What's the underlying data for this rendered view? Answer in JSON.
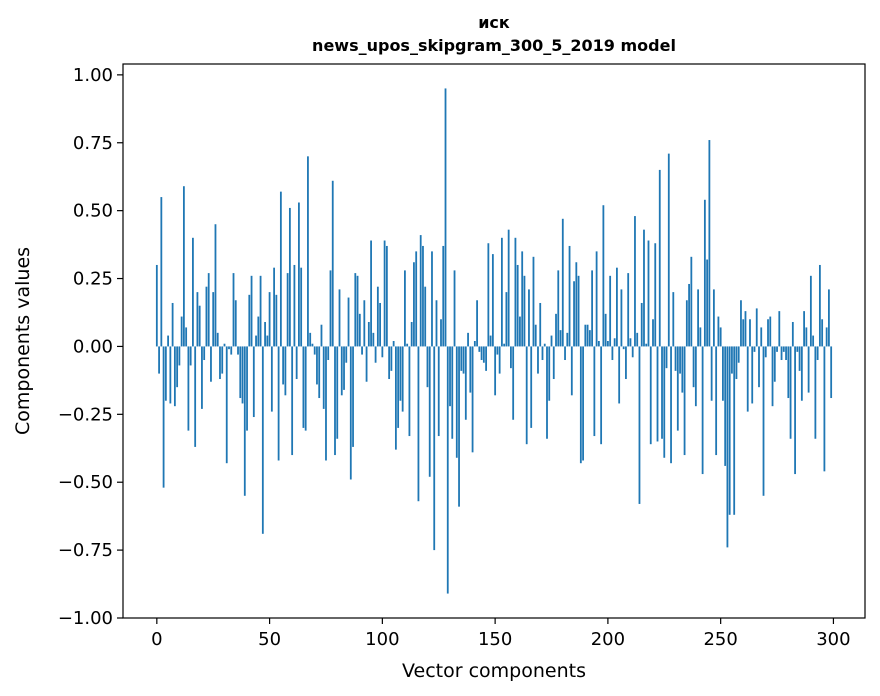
{
  "chart_data": {
    "type": "bar",
    "title_line1": "иск",
    "title_line2": "news_upos_skipgram_300_5_2019 model",
    "xlabel": "Vector components",
    "ylabel": "Components values",
    "xlim": [
      -15,
      314
    ],
    "ylim": [
      -1.0,
      1.04
    ],
    "xticks": [
      0,
      50,
      100,
      150,
      200,
      250,
      300
    ],
    "xtick_labels": [
      "0",
      "50",
      "100",
      "150",
      "200",
      "250",
      "300"
    ],
    "yticks": [
      -1.0,
      -0.75,
      -0.5,
      -0.25,
      0.0,
      0.25,
      0.5,
      0.75,
      1.0
    ],
    "ytick_labels": [
      "−1.00",
      "−0.75",
      "−0.50",
      "−0.25",
      "0.00",
      "0.25",
      "0.50",
      "0.75",
      "1.00"
    ],
    "grid": false,
    "bar_color": "#1f77b4",
    "x": "0..299 (component index)",
    "values": [
      0.3,
      -0.1,
      0.55,
      -0.52,
      -0.2,
      0.04,
      -0.21,
      0.16,
      -0.22,
      -0.15,
      -0.07,
      0.11,
      0.59,
      0.07,
      -0.31,
      -0.07,
      0.4,
      -0.37,
      0.2,
      0.15,
      -0.23,
      -0.05,
      0.22,
      0.27,
      -0.13,
      0.2,
      0.45,
      0.05,
      -0.12,
      -0.1,
      0.01,
      -0.43,
      -0.01,
      -0.03,
      0.27,
      0.17,
      -0.03,
      -0.19,
      -0.21,
      -0.55,
      -0.31,
      0.19,
      0.26,
      -0.26,
      0.04,
      0.11,
      0.26,
      -0.69,
      0.09,
      0.04,
      0.2,
      -0.24,
      0.29,
      0.19,
      -0.42,
      0.57,
      -0.14,
      -0.18,
      0.27,
      0.51,
      -0.4,
      0.3,
      -0.12,
      0.53,
      0.29,
      -0.3,
      -0.31,
      0.7,
      0.05,
      0.01,
      -0.03,
      -0.14,
      -0.19,
      0.08,
      -0.23,
      -0.42,
      -0.05,
      0.28,
      0.61,
      -0.4,
      -0.34,
      0.21,
      -0.18,
      -0.16,
      -0.06,
      0.18,
      -0.49,
      -0.37,
      0.27,
      0.26,
      0.12,
      -0.03,
      0.17,
      -0.13,
      0.09,
      0.39,
      0.05,
      -0.06,
      0.22,
      0.16,
      -0.04,
      0.39,
      0.37,
      -0.12,
      -0.09,
      0.02,
      -0.38,
      -0.3,
      -0.2,
      -0.24,
      0.28,
      0.01,
      -0.33,
      0.09,
      0.31,
      0.35,
      -0.57,
      0.41,
      0.37,
      0.22,
      -0.15,
      -0.48,
      0.35,
      -0.75,
      0.17,
      -0.33,
      0.1,
      0.37,
      0.95,
      -0.91,
      -0.22,
      -0.34,
      0.28,
      -0.41,
      -0.59,
      -0.09,
      -0.1,
      -0.27,
      0.05,
      -0.17,
      -0.39,
      0.02,
      0.17,
      -0.02,
      -0.05,
      -0.06,
      -0.09,
      0.38,
      0.04,
      0.34,
      -0.18,
      -0.03,
      -0.1,
      0.4,
      0.01,
      0.2,
      0.43,
      -0.08,
      -0.27,
      0.4,
      0.3,
      0.11,
      0.35,
      0.26,
      -0.36,
      0.21,
      -0.3,
      0.33,
      0.08,
      -0.1,
      0.16,
      -0.05,
      0.01,
      -0.34,
      -0.2,
      0.04,
      -0.12,
      0.12,
      0.28,
      0.06,
      0.47,
      -0.05,
      0.05,
      0.37,
      -0.18,
      0.24,
      0.31,
      0.26,
      -0.43,
      -0.42,
      0.08,
      0.08,
      0.06,
      0.28,
      -0.33,
      0.35,
      0.02,
      -0.36,
      0.52,
      0.12,
      0.02,
      0.26,
      -0.05,
      0.03,
      0.29,
      -0.21,
      0.21,
      -0.01,
      -0.12,
      0.27,
      0.03,
      -0.04,
      0.48,
      0.05,
      -0.58,
      0.16,
      0.43,
      0.01,
      0.39,
      -0.36,
      0.1,
      0.38,
      -0.35,
      0.65,
      -0.34,
      -0.41,
      -0.08,
      0.71,
      -0.43,
      0.2,
      -0.09,
      -0.31,
      -0.1,
      -0.17,
      -0.4,
      0.17,
      0.23,
      0.33,
      -0.15,
      -0.22,
      0.21,
      0.07,
      -0.47,
      0.54,
      0.32,
      0.76,
      -0.2,
      0.21,
      -0.4,
      0.11,
      0.07,
      -0.2,
      -0.44,
      -0.74,
      -0.62,
      -0.1,
      -0.62,
      -0.12,
      -0.06,
      0.17,
      0.1,
      0.13,
      -0.24,
      0.1,
      -0.21,
      -0.02,
      0.14,
      -0.15,
      0.07,
      -0.55,
      -0.04,
      0.1,
      0.11,
      -0.22,
      -0.13,
      -0.02,
      0.13,
      -0.05,
      -0.02,
      -0.05,
      -0.19,
      -0.34,
      0.09,
      -0.47,
      -0.02,
      -0.09,
      -0.2,
      0.13,
      0.07,
      -0.17,
      0.26,
      0.04,
      -0.34,
      -0.05,
      0.3,
      0.1,
      -0.46,
      0.07,
      0.21,
      -0.19
    ]
  }
}
